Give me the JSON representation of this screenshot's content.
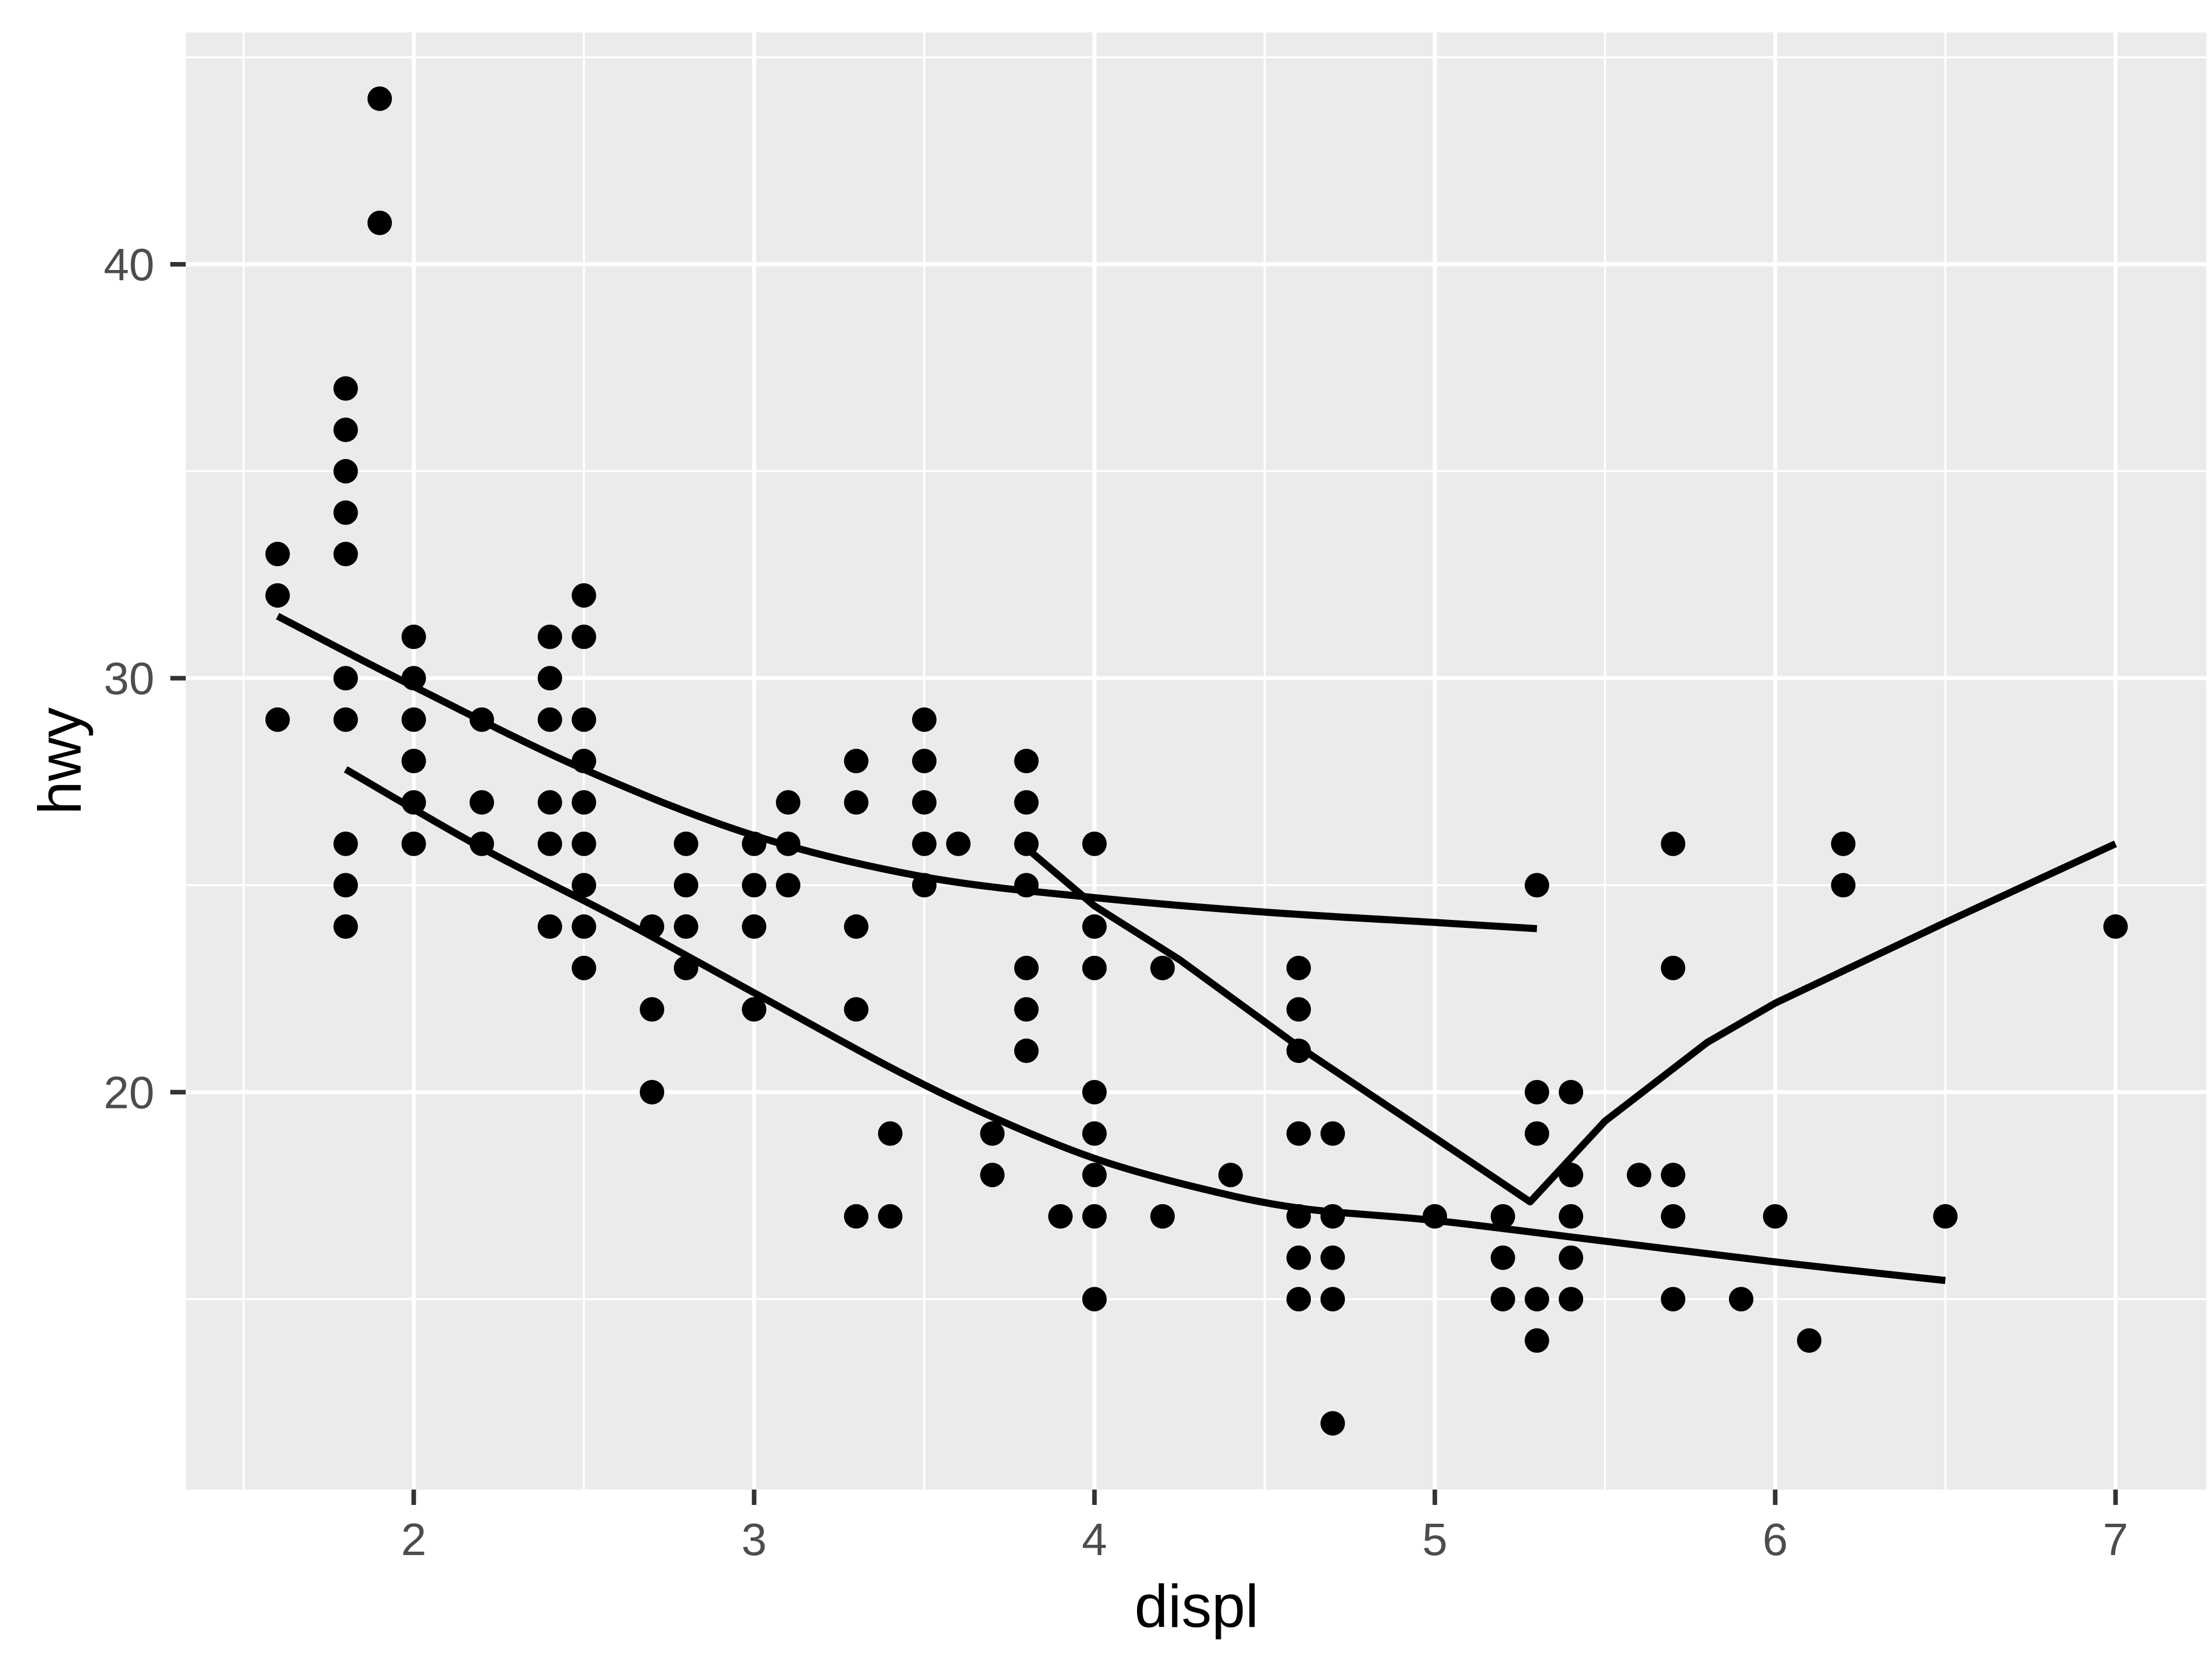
{
  "chart_data": {
    "type": "scatter",
    "title": "",
    "xlabel": "displ",
    "ylabel": "hwy",
    "xlim": [
      1.33,
      7.27
    ],
    "ylim": [
      10.4,
      45.6
    ],
    "x_ticks": [
      2,
      3,
      4,
      5,
      6,
      7
    ],
    "y_ticks": [
      20,
      30,
      40
    ],
    "x_minor_ticks": [
      1.5,
      2.5,
      3.5,
      4.5,
      5.5,
      6.5,
      7.27
    ],
    "y_minor_ticks": [
      15,
      25,
      35,
      45
    ],
    "grid": true,
    "legend_position": "none",
    "style": {
      "panel_background": "#EBEBEB",
      "grid_color": "#FFFFFF",
      "point_color": "#000000",
      "line_color": "#000000",
      "tick_mark_color": "#333333",
      "tick_label_color": "#4D4D4D",
      "axis_title_color": "#000000"
    },
    "points": [
      [
        1.6,
        33
      ],
      [
        1.6,
        32
      ],
      [
        1.6,
        29
      ],
      [
        1.8,
        37
      ],
      [
        1.8,
        36
      ],
      [
        1.8,
        35
      ],
      [
        1.8,
        34
      ],
      [
        1.8,
        33
      ],
      [
        1.8,
        30
      ],
      [
        1.8,
        29
      ],
      [
        1.8,
        26
      ],
      [
        1.8,
        25
      ],
      [
        1.8,
        24
      ],
      [
        1.9,
        44
      ],
      [
        1.9,
        41
      ],
      [
        2.0,
        31
      ],
      [
        2.0,
        30
      ],
      [
        2.0,
        29
      ],
      [
        2.0,
        28
      ],
      [
        2.0,
        27
      ],
      [
        2.0,
        26
      ],
      [
        2.2,
        29
      ],
      [
        2.2,
        27
      ],
      [
        2.2,
        26
      ],
      [
        2.4,
        31
      ],
      [
        2.4,
        30
      ],
      [
        2.4,
        29
      ],
      [
        2.4,
        27
      ],
      [
        2.4,
        26
      ],
      [
        2.4,
        24
      ],
      [
        2.5,
        32
      ],
      [
        2.5,
        31
      ],
      [
        2.5,
        29
      ],
      [
        2.5,
        28
      ],
      [
        2.5,
        27
      ],
      [
        2.5,
        26
      ],
      [
        2.5,
        25
      ],
      [
        2.5,
        24
      ],
      [
        2.5,
        23
      ],
      [
        2.7,
        24
      ],
      [
        2.7,
        22
      ],
      [
        2.7,
        20
      ],
      [
        2.8,
        26
      ],
      [
        2.8,
        25
      ],
      [
        2.8,
        24
      ],
      [
        2.8,
        23
      ],
      [
        3.0,
        26
      ],
      [
        3.0,
        25
      ],
      [
        3.0,
        24
      ],
      [
        3.0,
        22
      ],
      [
        3.1,
        27
      ],
      [
        3.1,
        26
      ],
      [
        3.1,
        25
      ],
      [
        3.3,
        28
      ],
      [
        3.3,
        27
      ],
      [
        3.3,
        24
      ],
      [
        3.3,
        22
      ],
      [
        3.3,
        17
      ],
      [
        3.4,
        19
      ],
      [
        3.4,
        17
      ],
      [
        3.5,
        29
      ],
      [
        3.5,
        28
      ],
      [
        3.5,
        27
      ],
      [
        3.5,
        26
      ],
      [
        3.5,
        25
      ],
      [
        3.6,
        26
      ],
      [
        3.7,
        19
      ],
      [
        3.7,
        18
      ],
      [
        3.8,
        28
      ],
      [
        3.8,
        27
      ],
      [
        3.8,
        26
      ],
      [
        3.8,
        25
      ],
      [
        3.8,
        23
      ],
      [
        3.8,
        22
      ],
      [
        3.8,
        21
      ],
      [
        3.9,
        17
      ],
      [
        4.0,
        26
      ],
      [
        4.0,
        24
      ],
      [
        4.0,
        23
      ],
      [
        4.0,
        20
      ],
      [
        4.0,
        19
      ],
      [
        4.0,
        18
      ],
      [
        4.0,
        17
      ],
      [
        4.0,
        15
      ],
      [
        4.2,
        23
      ],
      [
        4.2,
        17
      ],
      [
        4.4,
        18
      ],
      [
        4.6,
        23
      ],
      [
        4.6,
        22
      ],
      [
        4.6,
        21
      ],
      [
        4.6,
        19
      ],
      [
        4.6,
        17
      ],
      [
        4.6,
        16
      ],
      [
        4.6,
        15
      ],
      [
        4.7,
        19
      ],
      [
        4.7,
        17
      ],
      [
        4.7,
        16
      ],
      [
        4.7,
        15
      ],
      [
        4.7,
        12
      ],
      [
        5.0,
        17
      ],
      [
        5.2,
        17
      ],
      [
        5.2,
        16
      ],
      [
        5.2,
        15
      ],
      [
        5.3,
        25
      ],
      [
        5.3,
        20
      ],
      [
        5.3,
        19
      ],
      [
        5.3,
        15
      ],
      [
        5.3,
        14
      ],
      [
        5.4,
        20
      ],
      [
        5.4,
        18
      ],
      [
        5.4,
        17
      ],
      [
        5.4,
        16
      ],
      [
        5.4,
        15
      ],
      [
        5.6,
        18
      ],
      [
        5.7,
        26
      ],
      [
        5.7,
        23
      ],
      [
        5.7,
        18
      ],
      [
        5.7,
        17
      ],
      [
        5.7,
        15
      ],
      [
        5.9,
        15
      ],
      [
        6.0,
        17
      ],
      [
        6.1,
        14
      ],
      [
        6.2,
        26
      ],
      [
        6.2,
        25
      ],
      [
        6.5,
        17
      ],
      [
        7.0,
        24
      ]
    ],
    "smooth_lines": [
      {
        "name": "smooth-upper-f",
        "curve": "smooth",
        "points": [
          [
            1.6,
            31.5
          ],
          [
            2.0,
            29.8
          ],
          [
            2.5,
            27.8
          ],
          [
            3.0,
            26.2
          ],
          [
            3.5,
            25.2
          ],
          [
            4.0,
            24.7
          ],
          [
            4.5,
            24.35
          ],
          [
            5.0,
            24.1
          ],
          [
            5.3,
            23.95
          ]
        ]
      },
      {
        "name": "smooth-middle-4",
        "curve": "smooth",
        "points": [
          [
            1.8,
            27.8
          ],
          [
            2.2,
            25.9
          ],
          [
            2.6,
            24.2
          ],
          [
            3.0,
            22.4
          ],
          [
            3.4,
            20.6
          ],
          [
            3.7,
            19.4
          ],
          [
            4.0,
            18.4
          ],
          [
            4.3,
            17.7
          ],
          [
            4.6,
            17.2
          ],
          [
            5.0,
            16.9
          ],
          [
            5.5,
            16.4
          ],
          [
            6.0,
            15.9
          ],
          [
            6.5,
            15.45
          ]
        ]
      },
      {
        "name": "smooth-vee-r",
        "curve": "polyline",
        "points": [
          [
            3.8,
            25.9
          ],
          [
            4.0,
            24.5
          ],
          [
            4.25,
            23.2
          ],
          [
            4.6,
            21.1
          ],
          [
            5.0,
            18.9
          ],
          [
            5.28,
            17.35
          ],
          [
            5.5,
            19.3
          ],
          [
            5.8,
            21.2
          ],
          [
            6.0,
            22.15
          ],
          [
            6.5,
            24.1
          ],
          [
            7.0,
            26.0
          ]
        ]
      }
    ]
  }
}
